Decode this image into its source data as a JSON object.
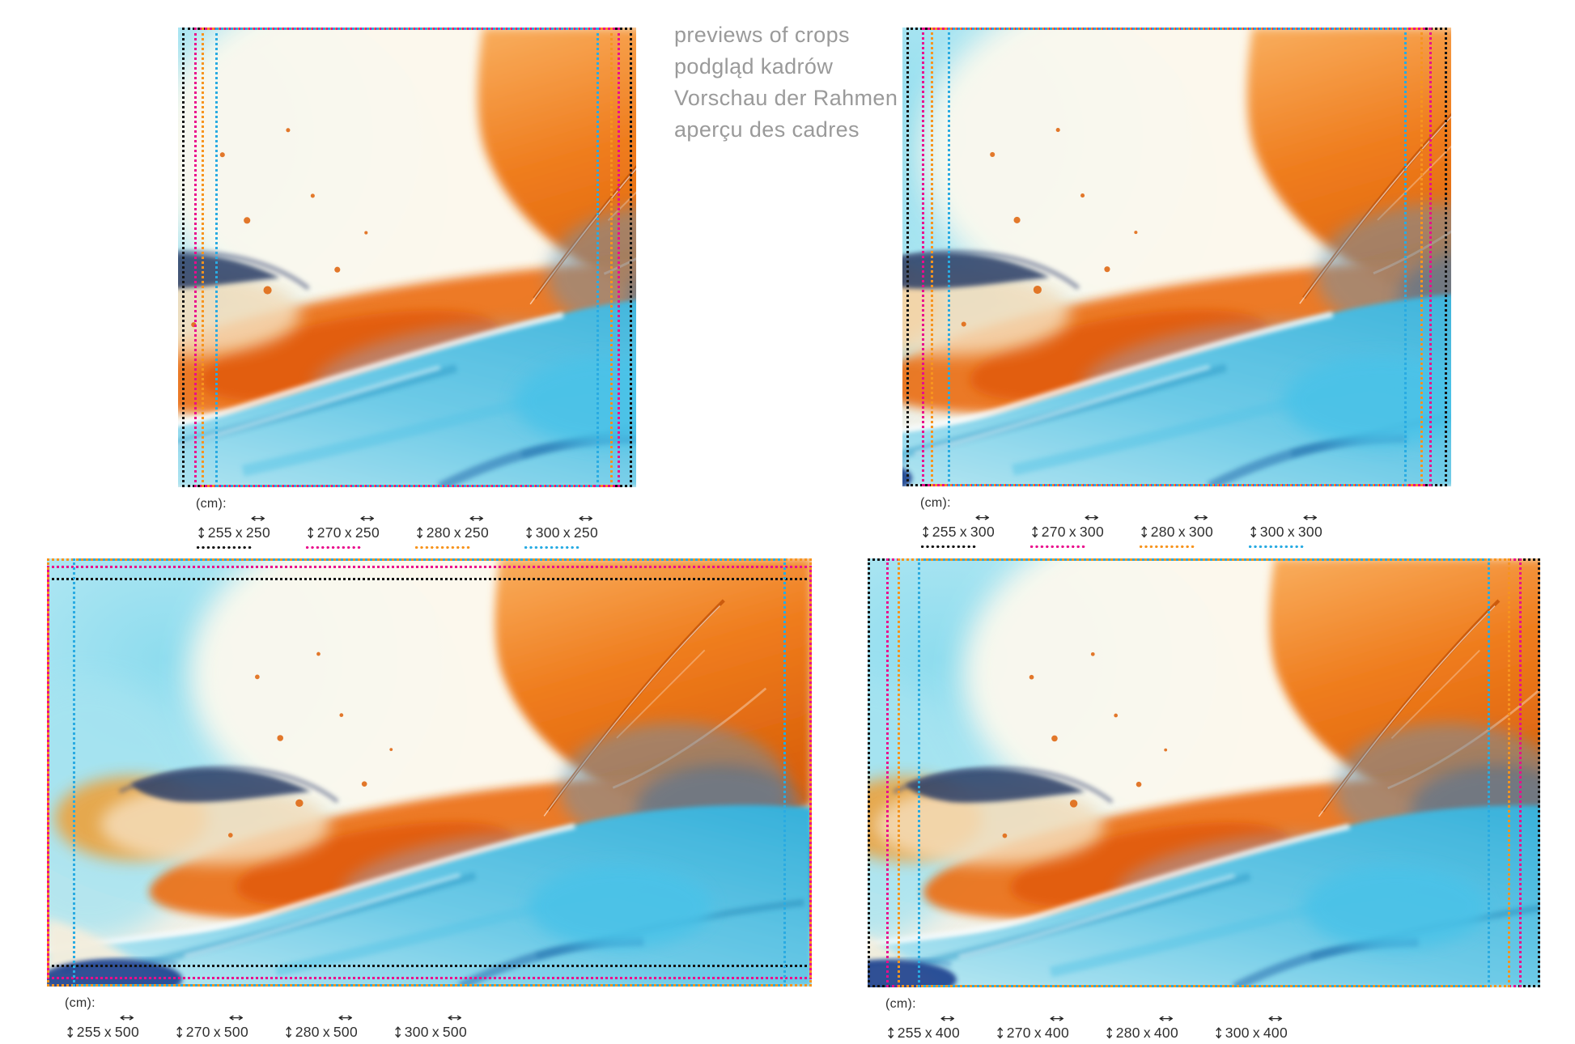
{
  "header": {
    "lines": [
      "previews of crops",
      "podgląd kadrów",
      "Vorschau der Rahmen",
      "aperçu des cadres"
    ]
  },
  "unit_label": "(cm):",
  "times_separator": "x",
  "icons": {
    "vertical_arrow": "↕",
    "horizontal_arrow": "↔"
  },
  "frame_colors": {
    "black": "#141414",
    "magenta": "#ea0d8c",
    "orange": "#f7941e",
    "cyan": "#29abe2"
  },
  "panels": [
    {
      "name": "crops-height-250",
      "sizes": [
        {
          "v": "255",
          "h": "250",
          "label": "255 x 250",
          "color_name": "black",
          "color": "#141414"
        },
        {
          "v": "270",
          "h": "250",
          "label": "270 x 250",
          "color_name": "magenta",
          "color": "#ea0d8c"
        },
        {
          "v": "280",
          "h": "250",
          "label": "280 x 250",
          "color_name": "orange",
          "color": "#f7941e"
        },
        {
          "v": "300",
          "h": "250",
          "label": "300 x 250",
          "color_name": "cyan",
          "color": "#29abe2"
        }
      ]
    },
    {
      "name": "crops-height-300",
      "sizes": [
        {
          "v": "255",
          "h": "300",
          "label": "255 x 300",
          "color_name": "black",
          "color": "#141414"
        },
        {
          "v": "270",
          "h": "300",
          "label": "270 x 300",
          "color_name": "magenta",
          "color": "#ea0d8c"
        },
        {
          "v": "280",
          "h": "300",
          "label": "280 x 300",
          "color_name": "orange",
          "color": "#f7941e"
        },
        {
          "v": "300",
          "h": "300",
          "label": "300 x 300",
          "color_name": "cyan",
          "color": "#29abe2"
        }
      ]
    },
    {
      "name": "crops-height-500",
      "sizes": [
        {
          "v": "255",
          "h": "500",
          "label": "255 x 500",
          "color_name": "black",
          "color": "#141414"
        },
        {
          "v": "270",
          "h": "500",
          "label": "270 x 500",
          "color_name": "magenta",
          "color": "#ea0d8c"
        },
        {
          "v": "280",
          "h": "500",
          "label": "280 x 500",
          "color_name": "orange",
          "color": "#f7941e"
        },
        {
          "v": "300",
          "h": "500",
          "label": "300 x 500",
          "color_name": "cyan",
          "color": "#29abe2"
        }
      ]
    },
    {
      "name": "crops-height-400",
      "sizes": [
        {
          "v": "255",
          "h": "400",
          "label": "255 x 400",
          "color_name": "black",
          "color": "#141414"
        },
        {
          "v": "270",
          "h": "400",
          "label": "270 x 400",
          "color_name": "magenta",
          "color": "#ea0d8c"
        },
        {
          "v": "280",
          "h": "400",
          "label": "280 x 400",
          "color_name": "orange",
          "color": "#f7941e"
        },
        {
          "v": "300",
          "h": "400",
          "label": "300 x 400",
          "color_name": "cyan",
          "color": "#29abe2"
        }
      ]
    }
  ]
}
